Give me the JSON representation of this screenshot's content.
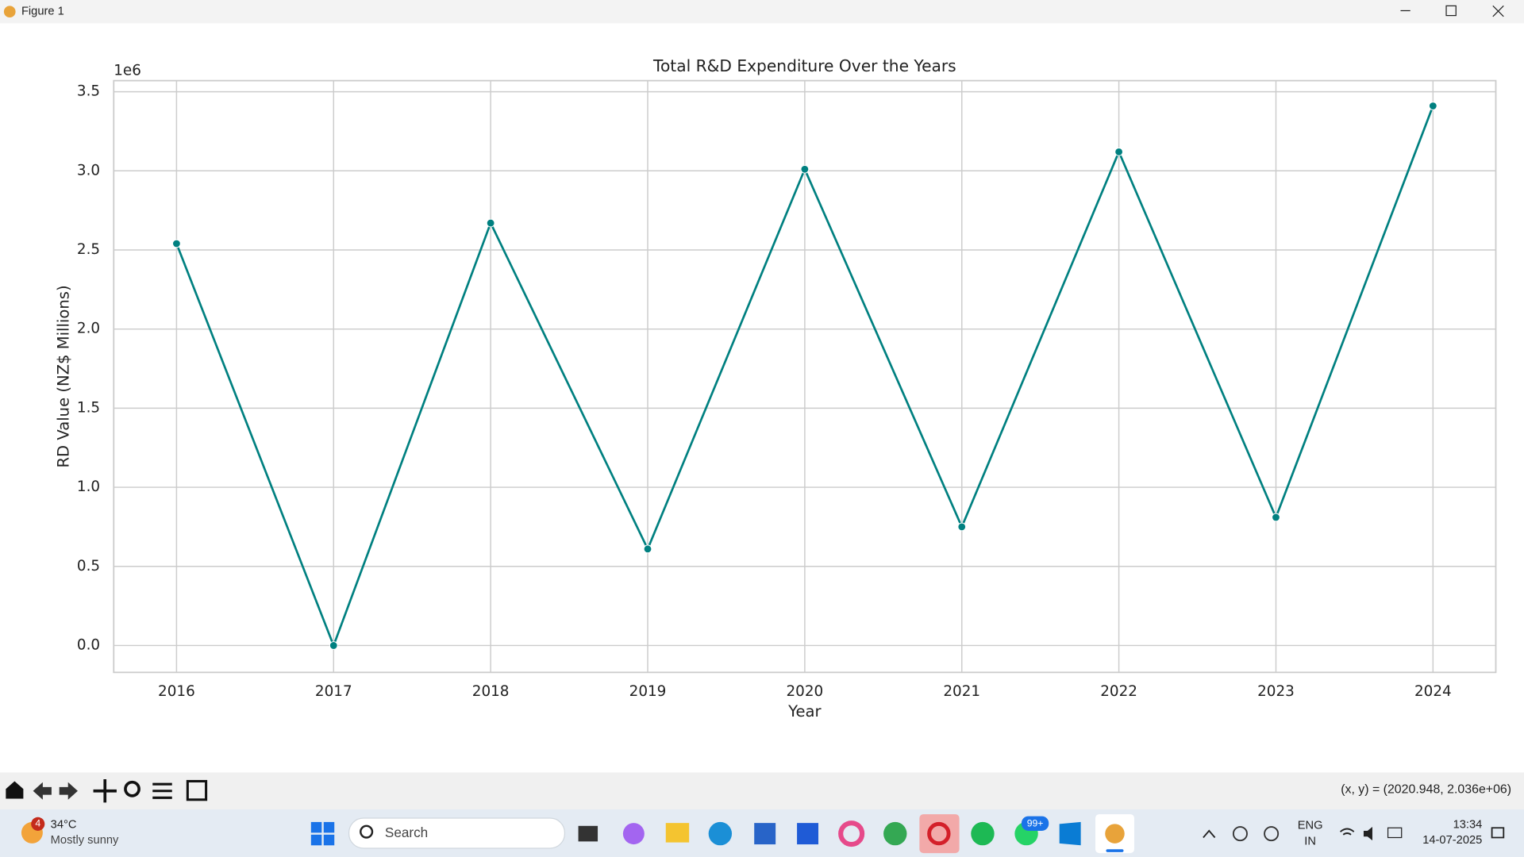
{
  "window": {
    "title": "Figure 1",
    "status": "(x, y) = (2020.948, 2.036e+06)"
  },
  "taskbar": {
    "weather_badge": "4",
    "temperature": "34°C",
    "weather": "Mostly sunny",
    "search": "Search",
    "whatsapp_badge": "99+",
    "language": "ENG",
    "region": "IN",
    "time": "13:34",
    "date": "14-07-2025"
  },
  "chart_data": {
    "type": "line",
    "title": "Total R&D Expenditure Over the Years",
    "x_label": "Year",
    "y_label": "RD Value (NZ$ Millions)",
    "y_offset_label": "1e6",
    "x": [
      2016,
      2017,
      2018,
      2019,
      2020,
      2021,
      2022,
      2023,
      2024
    ],
    "values": [
      2.54,
      0.0,
      2.67,
      0.61,
      3.01,
      0.75,
      3.12,
      0.81,
      3.41
    ],
    "color": "#008080",
    "marker": true,
    "xlim": [
      2015.6,
      2024.4
    ],
    "xticks": [
      2016,
      2017,
      2018,
      2019,
      2020,
      2021,
      2022,
      2023,
      2024
    ],
    "ylim": [
      -0.17,
      3.57
    ],
    "yticks": [
      {
        "value": 0,
        "label": "0.0"
      },
      0.5,
      {
        "value": 1,
        "label": "1.0"
      },
      1.5,
      {
        "value": 2,
        "label": "2.0"
      },
      2.5,
      {
        "value": 3,
        "label": "3.0"
      },
      3.5
    ],
    "grid": true
  }
}
